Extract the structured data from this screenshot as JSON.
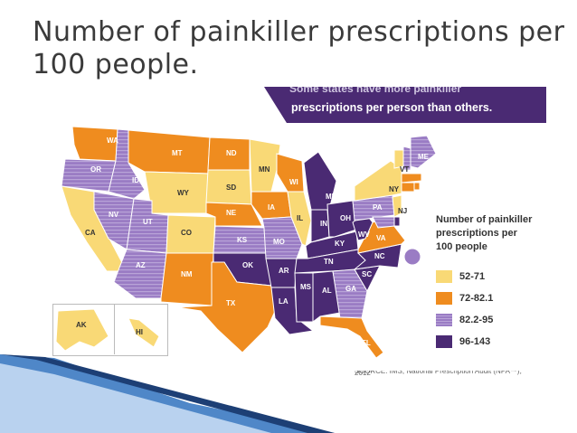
{
  "title": "Number of painkiller prescriptions per 100 people.",
  "banner": {
    "hidden_line": "Some states have more painkiller",
    "line": "prescriptions per person than others."
  },
  "source": "SOURCE: IMS, National Prescription Audit (NPA™), 2012",
  "colors": {
    "bin_52_71": "#f9d976",
    "bin_72_82": "#ef8c1f",
    "bin_82_95": "#9a7cc4",
    "bin_96_143": "#4a2a73"
  },
  "legend": {
    "title": "Number of painkiller prescriptions per 100 people",
    "items": [
      {
        "label": "52-71",
        "color": "#f9d976"
      },
      {
        "label": "72-82.1",
        "color": "#ef8c1f"
      },
      {
        "label": "82.2-95",
        "color": "#9a7cc4"
      },
      {
        "label": "96-143",
        "color": "#4a2a73"
      }
    ]
  },
  "states": {
    "WA": "72-82.1",
    "OR": "82.2-95",
    "CA": "52-71",
    "NV": "82.2-95",
    "ID": "82.2-95",
    "MT": "72-82.1",
    "WY": "52-71",
    "UT": "82.2-95",
    "AZ": "82.2-95",
    "CO": "52-71",
    "NM": "72-82.1",
    "ND": "72-82.1",
    "SD": "52-71",
    "NE": "72-82.1",
    "KS": "82.2-95",
    "OK": "96-143",
    "TX": "72-82.1",
    "MN": "52-71",
    "IA": "72-82.1",
    "MO": "82.2-95",
    "AR": "96-143",
    "LA": "96-143",
    "WI": "72-82.1",
    "IL": "52-71",
    "MI": "96-143",
    "IN": "96-143",
    "OH": "96-143",
    "KY": "96-143",
    "TN": "96-143",
    "MS": "96-143",
    "AL": "96-143",
    "GA": "82.2-95",
    "FL": "72-82.1",
    "SC": "96-143",
    "NC": "96-143",
    "VA": "72-82.1",
    "WV": "96-143",
    "PA": "82.2-95",
    "NY": "52-71",
    "VT": "52-71",
    "NH": "82.2-95",
    "ME": "82.2-95",
    "MA": "72-82.1",
    "RI": "72-82.1",
    "CT": "72-82.1",
    "NJ": "52-71",
    "DE": "96-143",
    "MD": "82.2-95",
    "DC": "82.2-95",
    "AK": "52-71",
    "HI": "52-71"
  }
}
